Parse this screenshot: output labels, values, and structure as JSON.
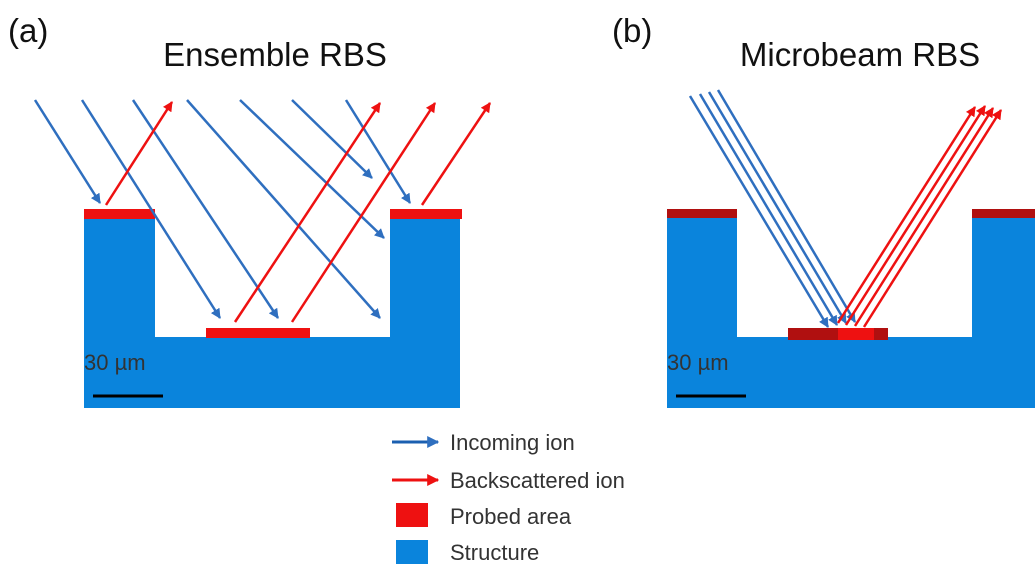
{
  "panels": [
    {
      "label": "(a)",
      "title": "Ensemble RBS",
      "scale_bar": "30 µm"
    },
    {
      "label": "(b)",
      "title": "Microbeam RBS",
      "scale_bar": "30 µm"
    }
  ],
  "legend": [
    "Incoming ion",
    "Backscattered ion",
    "Probed area",
    "Structure"
  ]
}
